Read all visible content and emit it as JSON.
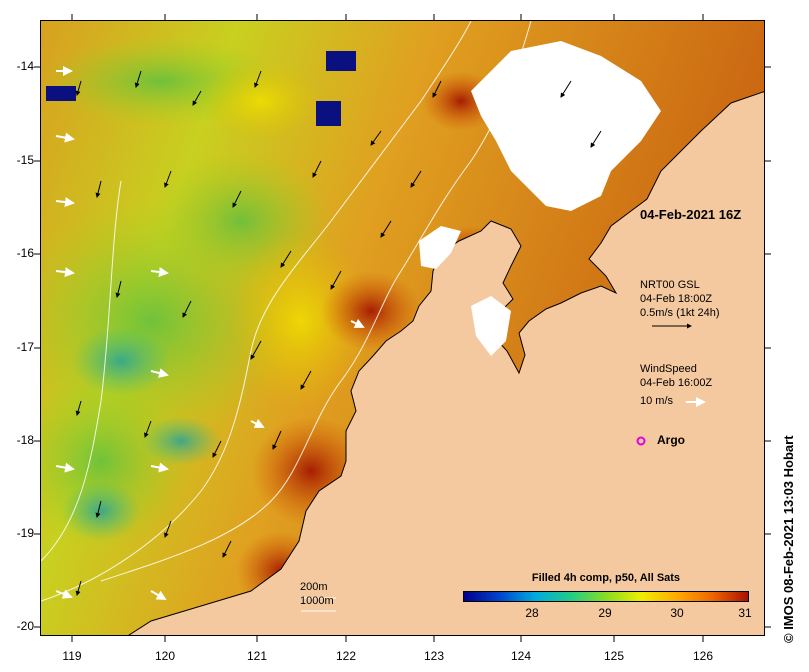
{
  "map": {
    "x_ticks": [
      "119",
      "120",
      "121",
      "122",
      "123",
      "124",
      "125",
      "126"
    ],
    "y_ticks": [
      "-14",
      "-15",
      "-16",
      "-17",
      "-18",
      "-19",
      "-20"
    ],
    "colors": {
      "land": "#f5c9a0",
      "cloud": "#ffffff",
      "coast": "#000000",
      "contour": "#ffffff"
    }
  },
  "annotations": {
    "date_label": "04-Feb-2021 16Z",
    "current_title": "NRT00 GSL",
    "current_time": "04-Feb 18:00Z",
    "current_scale": "0.5m/s (1kt 24h)",
    "wind_title": "WindSpeed",
    "wind_time": "04-Feb 16:00Z",
    "wind_scale": "10 m/s",
    "argo_label": "Argo",
    "contour_200": "200m",
    "contour_1000": "1000m",
    "argo_color": "#e000e0"
  },
  "colorbar": {
    "title": "Filled 4h comp, p50, All Sats",
    "labels": [
      "28",
      "29",
      "30",
      "31"
    ],
    "stops": [
      "#00008b",
      "#0044cc",
      "#00aadd",
      "#22cc88",
      "#88dd22",
      "#eeee00",
      "#ffaa00",
      "#ee6600",
      "#aa1100"
    ]
  },
  "credit": "© IMOS 08-Feb-2021 13:03 Hobart"
}
